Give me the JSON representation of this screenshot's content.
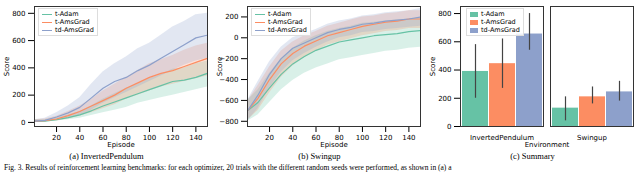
{
  "chart_data": [
    {
      "type": "line",
      "title": "(a) InvertedPendulum",
      "x_label": "Episode",
      "y_label": "Score",
      "x": [
        1,
        10,
        20,
        30,
        40,
        50,
        60,
        70,
        80,
        90,
        100,
        110,
        120,
        130,
        140,
        150
      ],
      "xlim": [
        1,
        150
      ],
      "xticks": [
        20,
        40,
        60,
        80,
        100,
        120,
        140
      ],
      "ylim": [
        -30,
        850
      ],
      "yticks": [
        0,
        200,
        400,
        600,
        800
      ],
      "grid": false,
      "legend": "upper left",
      "series": [
        {
          "name": "t-Adam",
          "color": "#66c2a5",
          "values": [
            10,
            10,
            20,
            35,
            55,
            85,
            120,
            150,
            180,
            210,
            240,
            270,
            300,
            310,
            330,
            360
          ],
          "lower": [
            0,
            5,
            10,
            20,
            30,
            50,
            70,
            90,
            110,
            140,
            160,
            180,
            200,
            220,
            240,
            260
          ],
          "upper": [
            20,
            20,
            35,
            55,
            80,
            120,
            170,
            210,
            250,
            280,
            320,
            350,
            390,
            400,
            430,
            450
          ]
        },
        {
          "name": "t-AmsGrad",
          "color": "#fc8d62",
          "values": [
            10,
            12,
            25,
            50,
            80,
            120,
            160,
            200,
            250,
            290,
            330,
            360,
            380,
            410,
            440,
            470
          ],
          "lower": [
            0,
            5,
            10,
            25,
            45,
            70,
            100,
            130,
            170,
            200,
            230,
            260,
            280,
            300,
            320,
            340
          ],
          "upper": [
            20,
            25,
            45,
            80,
            120,
            170,
            230,
            280,
            330,
            380,
            430,
            460,
            490,
            530,
            560,
            580
          ]
        },
        {
          "name": "td-AmsGrad",
          "color": "#8da0cb",
          "values": [
            10,
            15,
            40,
            70,
            110,
            180,
            250,
            300,
            330,
            380,
            420,
            470,
            520,
            570,
            620,
            640
          ],
          "lower": [
            0,
            5,
            15,
            30,
            50,
            90,
            140,
            180,
            220,
            260,
            300,
            340,
            380,
            420,
            450,
            470
          ],
          "upper": [
            20,
            30,
            70,
            120,
            180,
            280,
            370,
            430,
            480,
            540,
            580,
            640,
            700,
            740,
            790,
            800
          ]
        }
      ]
    },
    {
      "type": "line",
      "title": "(b) Swingup",
      "x_label": "Episode",
      "y_label": "Score",
      "x": [
        1,
        10,
        20,
        30,
        40,
        50,
        60,
        70,
        80,
        90,
        100,
        110,
        120,
        130,
        140,
        150
      ],
      "xlim": [
        1,
        150
      ],
      "xticks": [
        20,
        40,
        60,
        80,
        100,
        120,
        140
      ],
      "ylim": [
        -850,
        300
      ],
      "yticks": [
        -800,
        -600,
        -400,
        -200,
        0,
        200
      ],
      "grid": false,
      "legend": "upper left",
      "series": [
        {
          "name": "t-Adam",
          "color": "#66c2a5",
          "values": [
            -700,
            -620,
            -480,
            -350,
            -250,
            -180,
            -120,
            -80,
            -40,
            -20,
            0,
            20,
            30,
            40,
            60,
            70
          ],
          "lower": [
            -800,
            -740,
            -620,
            -500,
            -410,
            -340,
            -290,
            -250,
            -210,
            -190,
            -170,
            -150,
            -130,
            -120,
            -100,
            -90
          ],
          "upper": [
            -600,
            -500,
            -340,
            -200,
            -100,
            -30,
            20,
            60,
            90,
            110,
            140,
            150,
            160,
            170,
            180,
            190
          ]
        },
        {
          "name": "t-AmsGrad",
          "color": "#fc8d62",
          "values": [
            -700,
            -580,
            -400,
            -250,
            -150,
            -80,
            -30,
            20,
            50,
            80,
            110,
            130,
            150,
            160,
            180,
            180
          ],
          "lower": [
            -790,
            -700,
            -530,
            -380,
            -270,
            -190,
            -130,
            -70,
            -40,
            -10,
            20,
            40,
            60,
            70,
            90,
            90
          ],
          "upper": [
            -610,
            -460,
            -280,
            -130,
            -40,
            20,
            60,
            110,
            140,
            170,
            200,
            210,
            230,
            240,
            260,
            260
          ]
        },
        {
          "name": "td-AmsGrad",
          "color": "#8da0cb",
          "values": [
            -700,
            -550,
            -350,
            -200,
            -100,
            -50,
            0,
            50,
            80,
            100,
            130,
            140,
            160,
            170,
            180,
            200
          ],
          "lower": [
            -800,
            -680,
            -480,
            -330,
            -220,
            -150,
            -90,
            -40,
            0,
            20,
            50,
            60,
            80,
            90,
            100,
            110
          ],
          "upper": [
            -600,
            -420,
            -230,
            -90,
            0,
            40,
            80,
            130,
            160,
            180,
            210,
            220,
            240,
            250,
            260,
            280
          ]
        }
      ]
    },
    {
      "type": "bar",
      "title": "(c) Summary",
      "x_label": "Environment",
      "y_label": "Score",
      "categories": [
        "InvertedPendulum",
        "Swingup"
      ],
      "ylim": [
        0,
        850
      ],
      "yticks": [
        0,
        200,
        400,
        600,
        800
      ],
      "grid": false,
      "legend": "upper left",
      "series": [
        {
          "name": "t-Adam",
          "color": "#66c2a5",
          "values": [
            390,
            130
          ],
          "error_low": [
            200,
            40
          ],
          "error_high": [
            580,
            210
          ]
        },
        {
          "name": "t-AmsGrad",
          "color": "#fc8d62",
          "values": [
            445,
            210
          ],
          "error_low": [
            270,
            160
          ],
          "error_high": [
            620,
            280
          ]
        },
        {
          "name": "td-AmsGrad",
          "color": "#8da0cb",
          "values": [
            655,
            245
          ],
          "error_low": [
            540,
            180
          ],
          "error_high": [
            800,
            320
          ]
        }
      ]
    }
  ],
  "caption": "Fig. 3.   Results of reinforcement learning benchmarks: for each optimizer, 20 trials with the different random seeds were performed, as shown in (a) a"
}
